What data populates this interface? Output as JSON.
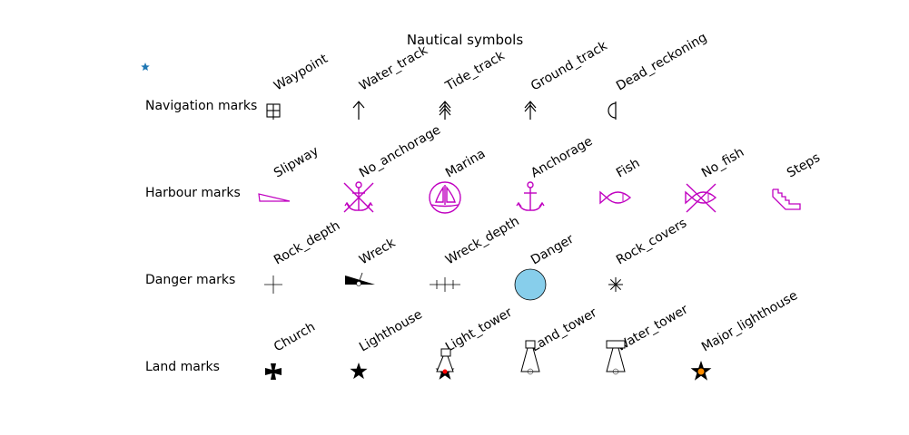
{
  "title": "Nautical symbols",
  "colors": {
    "magenta": "#c000c0",
    "danger_fill": "#87ceeb",
    "marker_blue": "#1f77b4",
    "lighthouse_orange": "#ff8c00"
  },
  "corner_marker": "star-marker",
  "rows": [
    {
      "label": "Navigation marks",
      "symbols": [
        {
          "name": "Waypoint",
          "icon": "waypoint"
        },
        {
          "name": "Water_track",
          "icon": "water-track-arrow"
        },
        {
          "name": "Tide_track",
          "icon": "tide-track-arrow"
        },
        {
          "name": "Ground_track",
          "icon": "ground-track-arrow"
        },
        {
          "name": "Dead_reckoning",
          "icon": "dead-reckoning"
        }
      ]
    },
    {
      "label": "Harbour marks",
      "symbols": [
        {
          "name": "Slipway",
          "icon": "slipway"
        },
        {
          "name": "No_anchorage",
          "icon": "no-anchorage"
        },
        {
          "name": "Marina",
          "icon": "marina"
        },
        {
          "name": "Anchorage",
          "icon": "anchor"
        },
        {
          "name": "Fish",
          "icon": "fish"
        },
        {
          "name": "No_fish",
          "icon": "no-fish"
        },
        {
          "name": "Steps",
          "icon": "steps"
        }
      ]
    },
    {
      "label": "Danger marks",
      "symbols": [
        {
          "name": "Rock_depth",
          "icon": "rock-depth"
        },
        {
          "name": "Wreck",
          "icon": "wreck"
        },
        {
          "name": "Wreck_depth",
          "icon": "wreck-depth"
        },
        {
          "name": "Danger",
          "icon": "danger-circle"
        },
        {
          "name": "Rock_covers",
          "icon": "rock-covers"
        }
      ]
    },
    {
      "label": "Land marks",
      "symbols": [
        {
          "name": "Church",
          "icon": "church"
        },
        {
          "name": "Lighthouse",
          "icon": "lighthouse-star"
        },
        {
          "name": "Light_tower",
          "icon": "light-tower"
        },
        {
          "name": "Land_tower",
          "icon": "land-tower"
        },
        {
          "name": "Water_tower",
          "icon": "water-tower"
        },
        {
          "name": "Major_lighthouse",
          "icon": "major-lighthouse"
        }
      ]
    }
  ]
}
